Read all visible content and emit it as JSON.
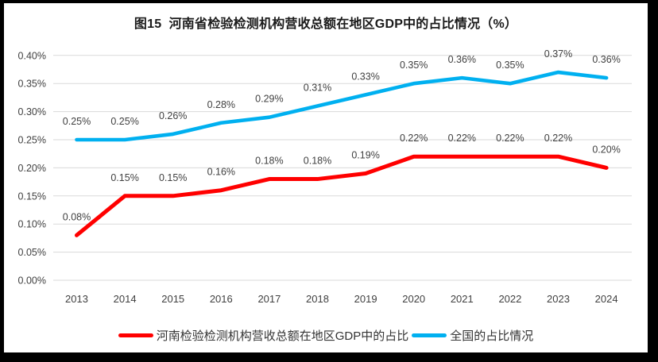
{
  "title": "图15  河南省检验检测机构营收总额在地区GDP中的占比情况（%）",
  "chart_data": {
    "type": "line",
    "title": "图15  河南省检验检测机构营收总额在地区GDP中的占比情况（%）",
    "categories": [
      "2013",
      "2014",
      "2015",
      "2016",
      "2017",
      "2018",
      "2019",
      "2020",
      "2021",
      "2022",
      "2023",
      "2024"
    ],
    "series": [
      {
        "name": "河南检验检测机构营收总额在地区GDP中的占比",
        "color": "#FF0000",
        "values": [
          0.08,
          0.15,
          0.15,
          0.16,
          0.18,
          0.18,
          0.19,
          0.22,
          0.22,
          0.22,
          0.22,
          0.2
        ],
        "labels": [
          "0.08%",
          "0.15%",
          "0.15%",
          "0.16%",
          "0.18%",
          "0.18%",
          "0.19%",
          "0.22%",
          "0.22%",
          "0.22%",
          "0.22%",
          "0.20%"
        ]
      },
      {
        "name": "全国的占比情况",
        "color": "#00B0F0",
        "values": [
          0.25,
          0.25,
          0.26,
          0.28,
          0.29,
          0.31,
          0.33,
          0.35,
          0.36,
          0.35,
          0.37,
          0.36
        ],
        "labels": [
          "0.25%",
          "0.25%",
          "0.26%",
          "0.28%",
          "0.29%",
          "0.31%",
          "0.33%",
          "0.35%",
          "0.36%",
          "0.35%",
          "0.37%",
          "0.36%"
        ]
      }
    ],
    "xlabel": "",
    "ylabel": "",
    "ylim": [
      0.0,
      0.004
    ],
    "ytick_labels": [
      "0.00%",
      "0.05%",
      "0.10%",
      "0.15%",
      "0.20%",
      "0.25%",
      "0.30%",
      "0.35%",
      "0.40%"
    ],
    "ytick_values": [
      0.0,
      0.05,
      0.1,
      0.15,
      0.2,
      0.25,
      0.3,
      0.35,
      0.4
    ],
    "grid": "horizontal-only",
    "legend_position": "bottom",
    "data_labels_visible": true,
    "gridline_color": "#D9D9D9",
    "tick_text_color": "#404040",
    "data_label_color": "#404040"
  }
}
